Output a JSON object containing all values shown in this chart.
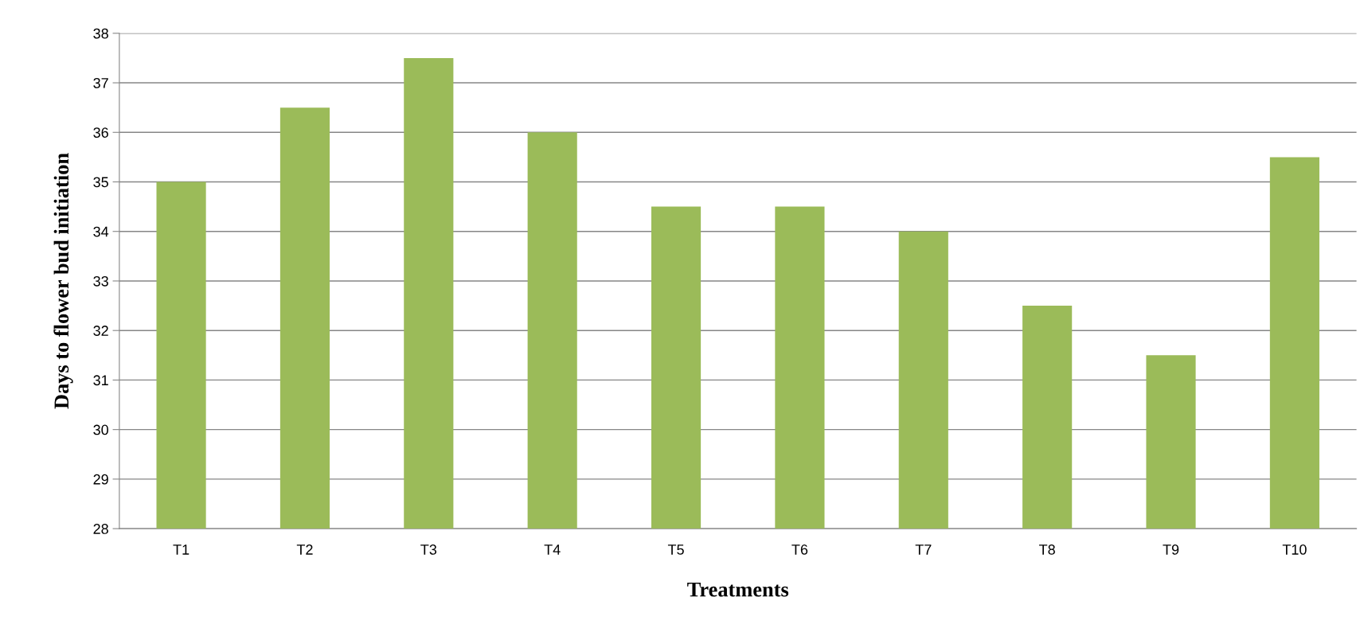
{
  "chart_data": {
    "type": "bar",
    "xlabel": "Treatments",
    "ylabel": "Days to flower bud initiation",
    "categories": [
      "T1",
      "T2",
      "T3",
      "T4",
      "T5",
      "T6",
      "T7",
      "T8",
      "T9",
      "T10"
    ],
    "values": [
      35,
      36.5,
      37.5,
      36,
      34.5,
      34.5,
      34,
      32.5,
      31.5,
      35.5
    ],
    "color": "#9bbb59",
    "ylim": [
      28,
      38
    ],
    "yticks": [
      28,
      29,
      30,
      31,
      32,
      33,
      34,
      35,
      36,
      37,
      38
    ],
    "grid": "y",
    "legend": false
  }
}
